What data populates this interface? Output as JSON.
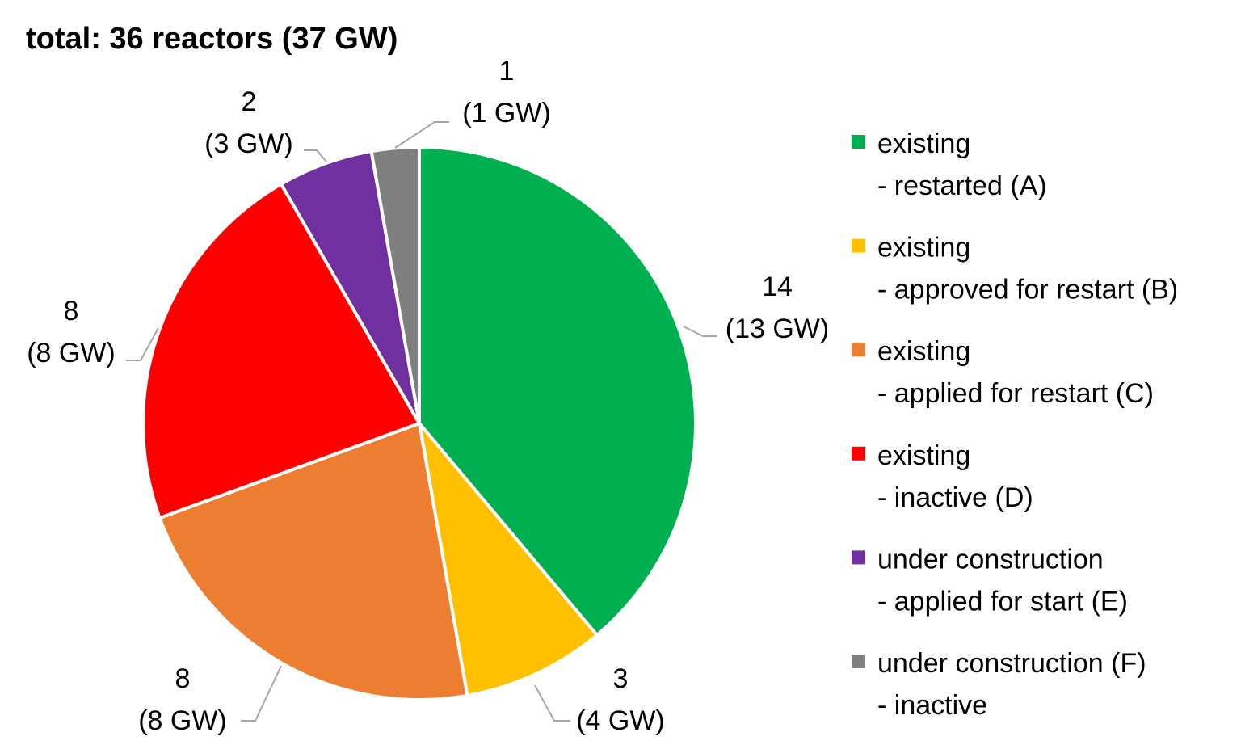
{
  "chart_data": {
    "type": "pie",
    "title": "total: 36 reactors (37 GW)",
    "colors": {
      "A": "#00b050",
      "B": "#ffc000",
      "C": "#ed7d31",
      "D": "#ff0000",
      "E": "#7030a0",
      "F": "#7f7f7f"
    },
    "slices": [
      {
        "key": "A",
        "value": 14,
        "gw": 13,
        "label_line1": "14",
        "label_line2": "(13 GW)",
        "legend_line1": "existing",
        "legend_line2": "- restarted (A)"
      },
      {
        "key": "B",
        "value": 3,
        "gw": 4,
        "label_line1": "3",
        "label_line2": "(4 GW)",
        "legend_line1": "existing",
        "legend_line2": "- approved for restart (B)"
      },
      {
        "key": "C",
        "value": 8,
        "gw": 8,
        "label_line1": "8",
        "label_line2": "(8 GW)",
        "legend_line1": "existing",
        "legend_line2": "- applied for restart (C)"
      },
      {
        "key": "D",
        "value": 8,
        "gw": 8,
        "label_line1": "8",
        "label_line2": "(8 GW)",
        "legend_line1": "existing",
        "legend_line2": "- inactive (D)"
      },
      {
        "key": "E",
        "value": 2,
        "gw": 3,
        "label_line1": "2",
        "label_line2": "(3 GW)",
        "legend_line1": "under construction",
        "legend_line2": "- applied for start (E)"
      },
      {
        "key": "F",
        "value": 1,
        "gw": 1,
        "label_line1": "1",
        "label_line2": "(1 GW)",
        "legend_line1": "under construction (F)",
        "legend_line2": "- inactive"
      }
    ],
    "legend_position": "right"
  }
}
